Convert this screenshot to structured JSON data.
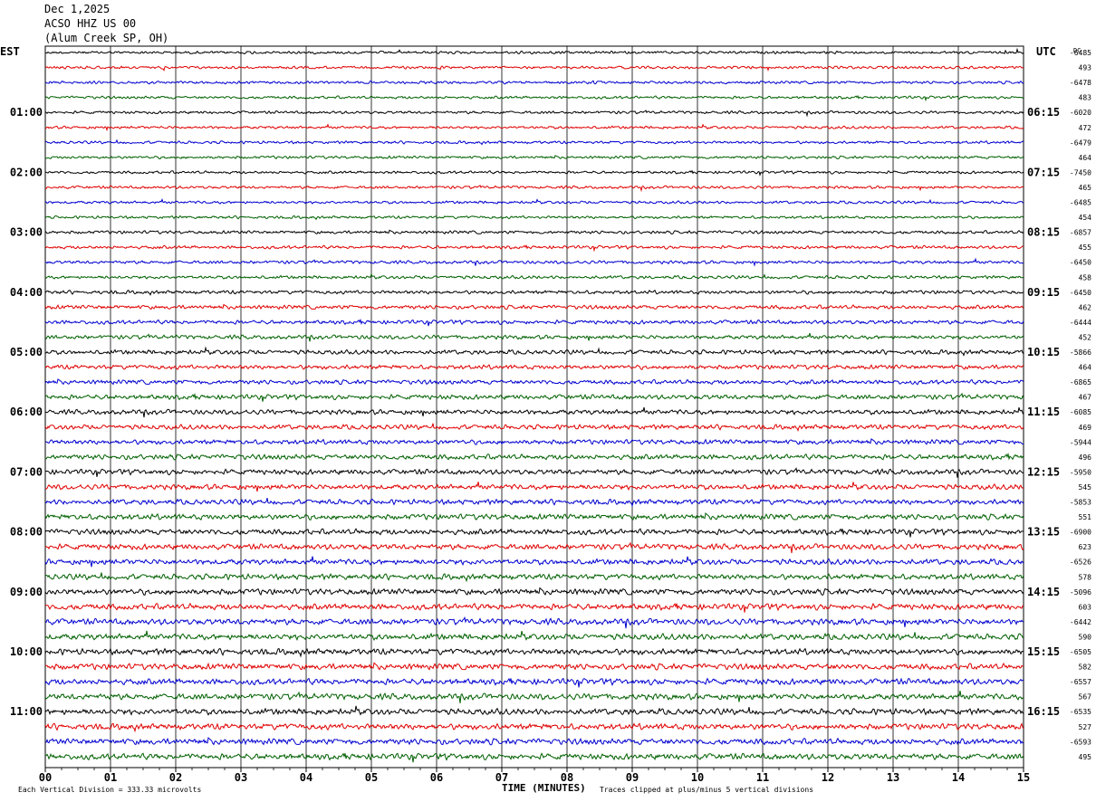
{
  "header": {
    "date": "Dec 1,2025",
    "station": "ACSO HHZ US 00",
    "location": "(Alum Creek SP, OH)"
  },
  "labels": {
    "left_tz": "EST",
    "right_tz": "UTC",
    "dc": "DC",
    "xlabel": "TIME (MINUTES)",
    "division_note": "Each Vertical Division =  333.33 microvolts",
    "clip_note": "Traces clipped at plus/minus 5 vertical divisions"
  },
  "colors": {
    "trace_cycle": [
      "#000000",
      "#e00000",
      "#0000d0",
      "#006000"
    ],
    "grid": "#000000"
  },
  "chart_data": {
    "type": "line",
    "description_free": true,
    "x_ticks": [
      "00",
      "01",
      "02",
      "03",
      "04",
      "05",
      "06",
      "07",
      "08",
      "09",
      "10",
      "11",
      "12",
      "13",
      "14",
      "15"
    ],
    "xlim": [
      0,
      15
    ],
    "trace_count": 48,
    "trace_minutes": 15,
    "left_hour_labels": [
      "01:00",
      "02:00",
      "03:00",
      "04:00",
      "05:00",
      "06:00",
      "07:00",
      "08:00",
      "09:00",
      "10:00",
      "11:00"
    ],
    "right_hour_labels": [
      "06:15",
      "07:15",
      "08:15",
      "09:15",
      "10:15",
      "11:15",
      "12:15",
      "13:15",
      "14:15",
      "15:15",
      "16:15"
    ],
    "hour_label_first_trace": 4,
    "hour_label_step": 4,
    "dc_values": [
      "-6485",
      "493",
      "-6478",
      "483",
      "-6020",
      "472",
      "-6479",
      "464",
      "-7450",
      "465",
      "-6485",
      "454",
      "-6857",
      "455",
      "-6450",
      "458",
      "-6450",
      "462",
      "-6444",
      "452",
      "-5866",
      "464",
      "-6865",
      "467",
      "-6085",
      "469",
      "-5944",
      "496",
      "-5950",
      "545",
      "-5853",
      "551",
      "-6900",
      "623",
      "-6526",
      "578",
      "-5096",
      "603",
      "-6442",
      "590",
      "-6505",
      "582",
      "-6557",
      "567",
      "-6535",
      "527",
      "-6593",
      "495"
    ],
    "noise_amplitude_by_trace": [
      0.35,
      0.35,
      0.35,
      0.35,
      0.35,
      0.35,
      0.35,
      0.35,
      0.35,
      0.35,
      0.35,
      0.35,
      0.4,
      0.4,
      0.4,
      0.4,
      0.45,
      0.5,
      0.5,
      0.5,
      0.55,
      0.55,
      0.55,
      0.6,
      0.6,
      0.6,
      0.6,
      0.65,
      0.65,
      0.65,
      0.65,
      0.7,
      0.7,
      0.7,
      0.7,
      0.7,
      0.75,
      0.75,
      0.75,
      0.75,
      0.75,
      0.75,
      0.75,
      0.75,
      0.75,
      0.75,
      0.75,
      0.75
    ]
  }
}
